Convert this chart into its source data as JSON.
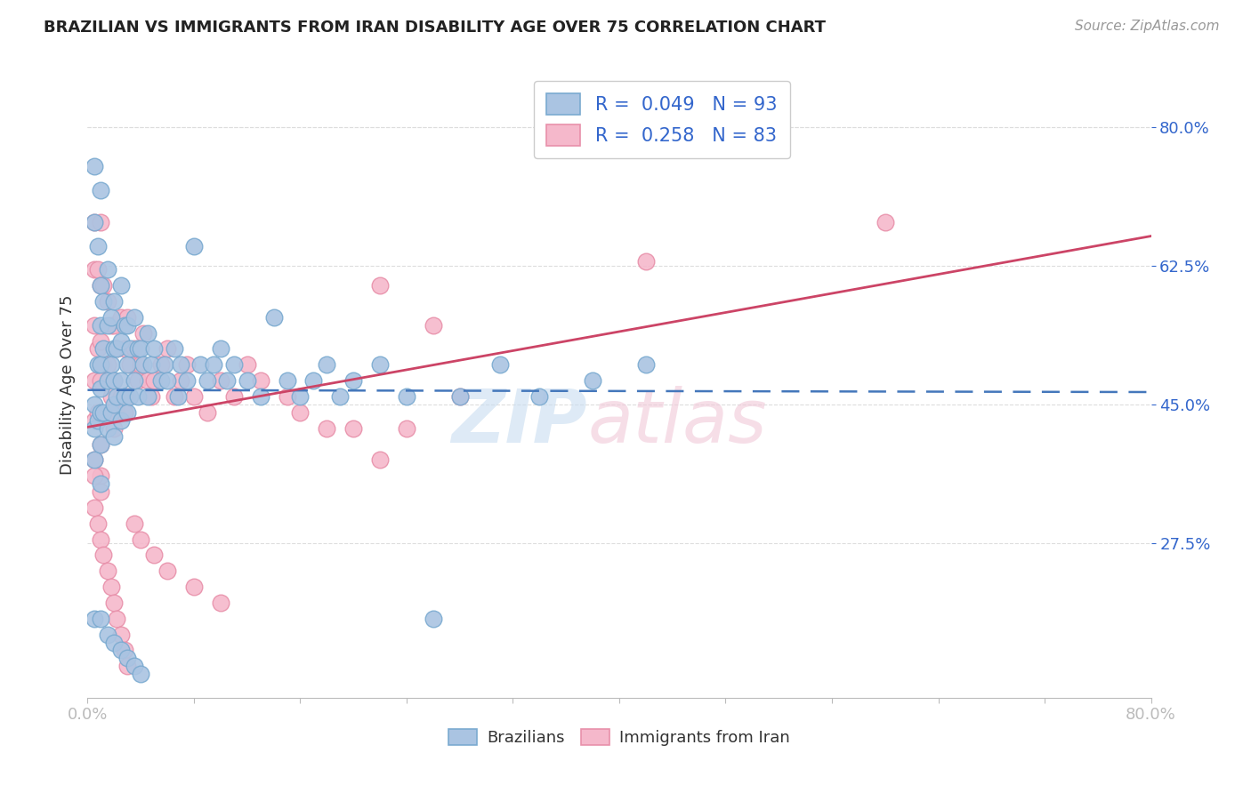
{
  "title": "BRAZILIAN VS IMMIGRANTS FROM IRAN DISABILITY AGE OVER 75 CORRELATION CHART",
  "source": "Source: ZipAtlas.com",
  "ylabel": "Disability Age Over 75",
  "ytick_labels": [
    "80.0%",
    "62.5%",
    "45.0%",
    "27.5%"
  ],
  "ytick_positions": [
    0.8,
    0.625,
    0.45,
    0.275
  ],
  "xmin": 0.0,
  "xmax": 0.8,
  "ymin": 0.08,
  "ymax": 0.87,
  "blue_color": "#aac4e2",
  "blue_edge": "#7aaad0",
  "pink_color": "#f5b8cb",
  "pink_edge": "#e890aa",
  "legend_r_blue": "R = 0.049",
  "legend_n_blue": "N = 93",
  "legend_r_pink": "R = 0.258",
  "legend_n_pink": "N = 83",
  "legend_label_blue": "Brazilians",
  "legend_label_pink": "Immigrants from Iran",
  "trendline_blue_color": "#4477bb",
  "trendline_pink_color": "#cc4466",
  "grid_color": "#dddddd",
  "spine_color": "#bbbbbb",
  "tick_color": "#3366cc",
  "label_color": "#333333",
  "source_color": "#999999",
  "blue_scatter_x": [
    0.005,
    0.005,
    0.005,
    0.005,
    0.005,
    0.008,
    0.008,
    0.008,
    0.01,
    0.01,
    0.01,
    0.01,
    0.01,
    0.01,
    0.01,
    0.01,
    0.012,
    0.012,
    0.012,
    0.015,
    0.015,
    0.015,
    0.015,
    0.018,
    0.018,
    0.018,
    0.02,
    0.02,
    0.02,
    0.02,
    0.02,
    0.022,
    0.022,
    0.025,
    0.025,
    0.025,
    0.025,
    0.028,
    0.028,
    0.03,
    0.03,
    0.03,
    0.032,
    0.032,
    0.035,
    0.035,
    0.038,
    0.038,
    0.04,
    0.042,
    0.045,
    0.045,
    0.048,
    0.05,
    0.055,
    0.058,
    0.06,
    0.065,
    0.068,
    0.07,
    0.075,
    0.08,
    0.085,
    0.09,
    0.095,
    0.1,
    0.105,
    0.11,
    0.12,
    0.13,
    0.14,
    0.15,
    0.16,
    0.17,
    0.18,
    0.19,
    0.2,
    0.22,
    0.24,
    0.26,
    0.28,
    0.31,
    0.34,
    0.38,
    0.42,
    0.005,
    0.01,
    0.015,
    0.02,
    0.025,
    0.03,
    0.035,
    0.04
  ],
  "blue_scatter_y": [
    0.75,
    0.68,
    0.45,
    0.42,
    0.38,
    0.65,
    0.5,
    0.43,
    0.72,
    0.6,
    0.55,
    0.5,
    0.47,
    0.44,
    0.4,
    0.35,
    0.58,
    0.52,
    0.44,
    0.62,
    0.55,
    0.48,
    0.42,
    0.56,
    0.5,
    0.44,
    0.58,
    0.52,
    0.48,
    0.45,
    0.41,
    0.52,
    0.46,
    0.6,
    0.53,
    0.48,
    0.43,
    0.55,
    0.46,
    0.55,
    0.5,
    0.44,
    0.52,
    0.46,
    0.56,
    0.48,
    0.52,
    0.46,
    0.52,
    0.5,
    0.54,
    0.46,
    0.5,
    0.52,
    0.48,
    0.5,
    0.48,
    0.52,
    0.46,
    0.5,
    0.48,
    0.65,
    0.5,
    0.48,
    0.5,
    0.52,
    0.48,
    0.5,
    0.48,
    0.46,
    0.56,
    0.48,
    0.46,
    0.48,
    0.5,
    0.46,
    0.48,
    0.5,
    0.46,
    0.18,
    0.46,
    0.5,
    0.46,
    0.48,
    0.5,
    0.18,
    0.18,
    0.16,
    0.15,
    0.14,
    0.13,
    0.12,
    0.11
  ],
  "pink_scatter_x": [
    0.005,
    0.005,
    0.005,
    0.005,
    0.005,
    0.005,
    0.008,
    0.008,
    0.008,
    0.01,
    0.01,
    0.01,
    0.01,
    0.01,
    0.01,
    0.01,
    0.012,
    0.012,
    0.015,
    0.015,
    0.015,
    0.018,
    0.018,
    0.02,
    0.02,
    0.02,
    0.022,
    0.022,
    0.025,
    0.025,
    0.028,
    0.028,
    0.03,
    0.03,
    0.032,
    0.035,
    0.038,
    0.04,
    0.042,
    0.045,
    0.048,
    0.05,
    0.055,
    0.06,
    0.065,
    0.07,
    0.075,
    0.08,
    0.09,
    0.1,
    0.11,
    0.12,
    0.13,
    0.15,
    0.16,
    0.18,
    0.2,
    0.22,
    0.24,
    0.26,
    0.28,
    0.005,
    0.008,
    0.01,
    0.012,
    0.015,
    0.018,
    0.02,
    0.022,
    0.025,
    0.028,
    0.03,
    0.035,
    0.04,
    0.05,
    0.06,
    0.08,
    0.1,
    0.22,
    0.42,
    0.6,
    0.005,
    0.01
  ],
  "pink_scatter_y": [
    0.68,
    0.62,
    0.55,
    0.48,
    0.43,
    0.38,
    0.62,
    0.52,
    0.44,
    0.68,
    0.6,
    0.53,
    0.48,
    0.44,
    0.4,
    0.36,
    0.6,
    0.5,
    0.58,
    0.5,
    0.44,
    0.55,
    0.46,
    0.55,
    0.48,
    0.42,
    0.52,
    0.44,
    0.56,
    0.46,
    0.52,
    0.44,
    0.56,
    0.46,
    0.5,
    0.52,
    0.48,
    0.5,
    0.54,
    0.48,
    0.46,
    0.48,
    0.5,
    0.52,
    0.46,
    0.48,
    0.5,
    0.46,
    0.44,
    0.48,
    0.46,
    0.5,
    0.48,
    0.46,
    0.44,
    0.42,
    0.42,
    0.6,
    0.42,
    0.55,
    0.46,
    0.32,
    0.3,
    0.28,
    0.26,
    0.24,
    0.22,
    0.2,
    0.18,
    0.16,
    0.14,
    0.12,
    0.3,
    0.28,
    0.26,
    0.24,
    0.22,
    0.2,
    0.38,
    0.63,
    0.68,
    0.36,
    0.34
  ]
}
